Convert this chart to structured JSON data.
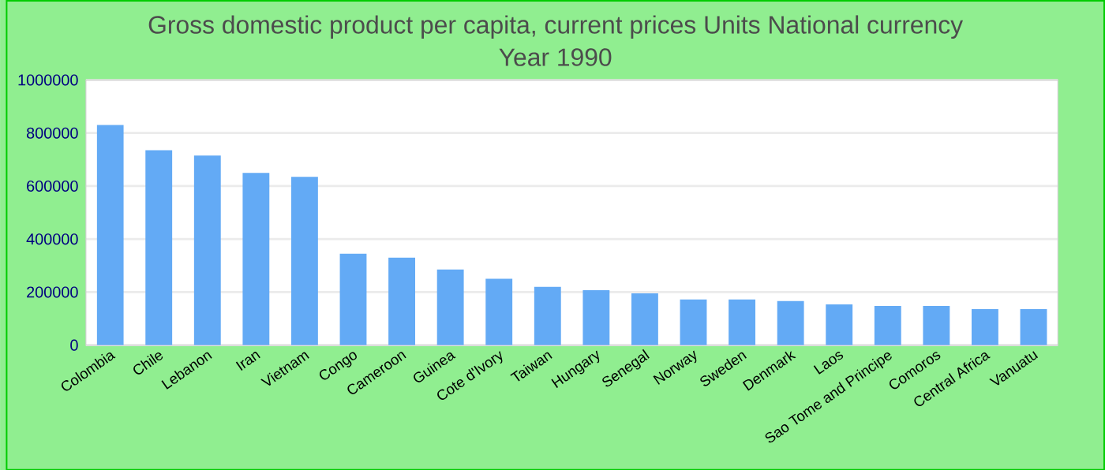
{
  "chart_data": {
    "type": "bar",
    "title": "Gross domestic product per capita, current prices Units National currency",
    "subtitle": "Year 1990",
    "categories": [
      "Colombia",
      "Chile",
      "Lebanon",
      "Iran",
      "Vietnam",
      "Congo",
      "Cameroon",
      "Guinea",
      "Cote d'Ivory",
      "Taiwan",
      "Hungary",
      "Senegal",
      "Norway",
      "Sweden",
      "Denmark",
      "Laos",
      "Sao Tome and Principe",
      "Comoros",
      "Central Africa",
      "Vanuatu"
    ],
    "values": [
      830000,
      735000,
      715000,
      650000,
      635000,
      345000,
      330000,
      285000,
      250000,
      220000,
      207000,
      195000,
      172000,
      172000,
      166000,
      154000,
      148000,
      148000,
      136000,
      136000
    ],
    "color": "#63aaf5",
    "ylim": [
      0,
      1000000
    ],
    "yticks": [
      0,
      200000,
      400000,
      600000,
      800000,
      1000000
    ],
    "grid": "y"
  }
}
